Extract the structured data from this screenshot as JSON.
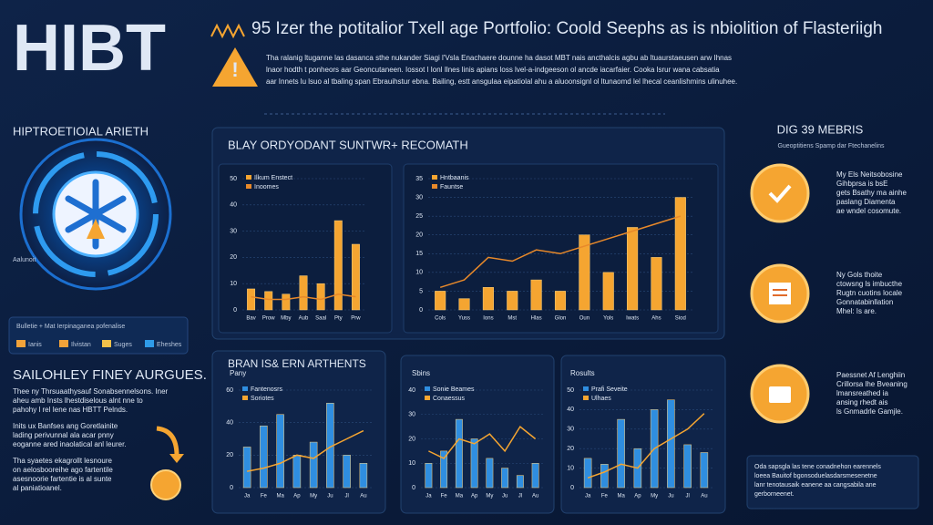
{
  "header": {
    "logo": "HIBT",
    "title": "95 Izer the potitalior Txell age Portfolio: Coold Seephs as is nbiolition of Flasteriigh",
    "notice": [
      "Tha ralanig ltuganne las dasanca sthe nukander Siagi l'Vsla Enachaere dounne ha dasot MBT nais ancthalcis agbu ab ltuaurstaeusen arw Ihnas",
      "lnaor hodth t ponheors aar Geoncutaneen. Iossot l Ionl Ilnes linis apians loss lvel-a-indgeeson ol ancde iacarfaier. Cooka lsrur wana cabsatia",
      "aar Innets lu lsuo al tbaling span Ebrauihstur ebna. Bailing, estt ansgulaa eipatiolal ahu a aluoonsignl ol ltunaomd lel lhecal ceanlishmins ulinuhee."
    ]
  },
  "left": {
    "heading": "HIPTROETIOIAL ARIETH",
    "ring_label": "Aalunoit",
    "legend_title": "Bulletie + Mat Ierpinaganea pofenalise",
    "legend": [
      {
        "name": "Ianis",
        "color": "#f2a33a"
      },
      {
        "name": "Ilvistan",
        "color": "#f2a33a"
      },
      {
        "name": "Suges",
        "color": "#f2c14a"
      },
      {
        "name": "Eheshes",
        "color": "#2f9be8"
      }
    ],
    "subheading": "SAILOHLEY FINEY AURGUES.",
    "paragraphs": [
      [
        "Thee ny Thrsuaathysauf Sonabsennelsons. Iner",
        "aheu amb Insts lhestdiselous alnt nne to",
        "pahohy l rel Iene nas HBTT Pelnds."
      ],
      [
        "Inits ux Banfses ang Goretlainite",
        "lading perivunnal ala acar pnny",
        "eoganne ared inaolatical anl leurer."
      ],
      [
        "Tha syaetes ekagrollt lesnoure",
        "on aelosbooreihe ago fartentile",
        "asesnoorie fartentie is al sunte",
        "al paniatioanel."
      ]
    ]
  },
  "sections": [
    "BLAY ORDYODANT SUNTWR+ RECOMATH",
    "BRAN IS& ERN ARTHENTS"
  ],
  "chart_data": [
    {
      "type": "combo",
      "categories": [
        "Bav",
        "Prow",
        "Mby",
        "Aub",
        "Saal",
        "Pty",
        "Prw"
      ],
      "series": [
        {
          "name": "Ilkum Enstect",
          "kind": "bar",
          "color": "#f5a531",
          "values": [
            8,
            7,
            6,
            13,
            10,
            34,
            25
          ]
        },
        {
          "name": "Inoomes",
          "kind": "line",
          "color": "#e8892a",
          "values": [
            5,
            4,
            4,
            5,
            4,
            6,
            5
          ]
        }
      ],
      "ylim": [
        0,
        50
      ],
      "yticks": [
        0,
        10,
        20,
        30,
        40,
        50
      ],
      "grid": true
    },
    {
      "type": "combo",
      "categories": [
        "Cols",
        "Yuss",
        "Ions",
        "Mst",
        "Hlas",
        "Glon",
        "Oun",
        "Yols",
        "Iwats",
        "Ahs",
        "Siod"
      ],
      "series": [
        {
          "name": "Hntbaanis",
          "kind": "bar",
          "color": "#f5a531",
          "values": [
            5,
            3,
            6,
            5,
            8,
            5,
            20,
            10,
            22,
            14,
            30
          ]
        },
        {
          "name": "Fauntse",
          "kind": "line",
          "color": "#e8892a",
          "values": [
            6,
            8,
            14,
            13,
            16,
            15,
            17,
            19,
            21,
            23,
            25
          ]
        }
      ],
      "ylim": [
        0,
        35
      ],
      "yticks": [
        0,
        5,
        10,
        15,
        20,
        25,
        30,
        35
      ],
      "grid": true
    },
    {
      "type": "combo",
      "title": "Pany",
      "categories": [
        "Ja",
        "Fe",
        "Ma",
        "Ap",
        "My",
        "Ju",
        "Jl",
        "Au"
      ],
      "series": [
        {
          "name": "Fantenosrs",
          "kind": "bar",
          "color": "#2f8ee0",
          "values": [
            25,
            38,
            45,
            20,
            28,
            52,
            20,
            15
          ]
        },
        {
          "name": "Soriotes",
          "kind": "line",
          "color": "#f5a531",
          "values": [
            10,
            12,
            15,
            20,
            18,
            25,
            30,
            35
          ]
        }
      ],
      "ylim": [
        0,
        60
      ],
      "yticks": [
        0,
        20,
        40,
        60
      ],
      "grid": true
    },
    {
      "type": "combo",
      "title": "Sbins",
      "categories": [
        "Ja",
        "Fe",
        "Ma",
        "Ap",
        "My",
        "Ju",
        "Jl",
        "Au"
      ],
      "series": [
        {
          "name": "Sonie Beames",
          "kind": "bar",
          "color": "#2f8ee0",
          "values": [
            10,
            15,
            28,
            20,
            12,
            8,
            5,
            10
          ]
        },
        {
          "name": "Conaessus",
          "kind": "line",
          "color": "#f5a531",
          "values": [
            15,
            12,
            20,
            18,
            22,
            15,
            25,
            20
          ]
        }
      ],
      "ylim": [
        0,
        40
      ],
      "yticks": [
        0,
        10,
        20,
        30,
        40
      ],
      "grid": true
    },
    {
      "type": "combo",
      "title": "Rosults",
      "categories": [
        "Ja",
        "Fe",
        "Ma",
        "Ap",
        "My",
        "Ju",
        "Jl",
        "Au"
      ],
      "series": [
        {
          "name": "Prafi Seveite",
          "kind": "bar",
          "color": "#2f8ee0",
          "values": [
            15,
            12,
            35,
            20,
            40,
            45,
            22,
            18
          ]
        },
        {
          "name": "Ulhaes",
          "kind": "line",
          "color": "#f5a531",
          "values": [
            5,
            8,
            12,
            10,
            20,
            25,
            30,
            38
          ]
        }
      ],
      "ylim": [
        0,
        50
      ],
      "yticks": [
        0,
        10,
        20,
        30,
        40,
        50
      ],
      "grid": true
    }
  ],
  "right": {
    "heading": "DIG 39 MEBRIS",
    "subheading": "Gueoptitiens Spamp dar Ftechanelins",
    "items": [
      [
        "My Els Neitsobosine",
        "Gihbprsa is bsE",
        "gets Bsathy ma ainhe",
        "paslang Diamenta",
        "ae wndel cosomute."
      ],
      [
        "Ny Gols thoite",
        "ctowsng ls imbucthe",
        "Rugtn cuotins locale",
        "Gonnatabinllation",
        "Mhel: Is are."
      ],
      [
        "Paessnet Af Lenghiin",
        "Crillorsa lhe Bveaning",
        "lmansreathed ia",
        "ansing rhedt ais",
        "ls Gnmadrle Gamjle."
      ]
    ],
    "note": [
      "Oda sapsgla las tene conadnehon earennels",
      "loeea Bauitof bgonsoduelasdarsmesenetne",
      "lanr tenotausaik eanene aa cangsabila ane",
      "gerborneenet."
    ]
  }
}
